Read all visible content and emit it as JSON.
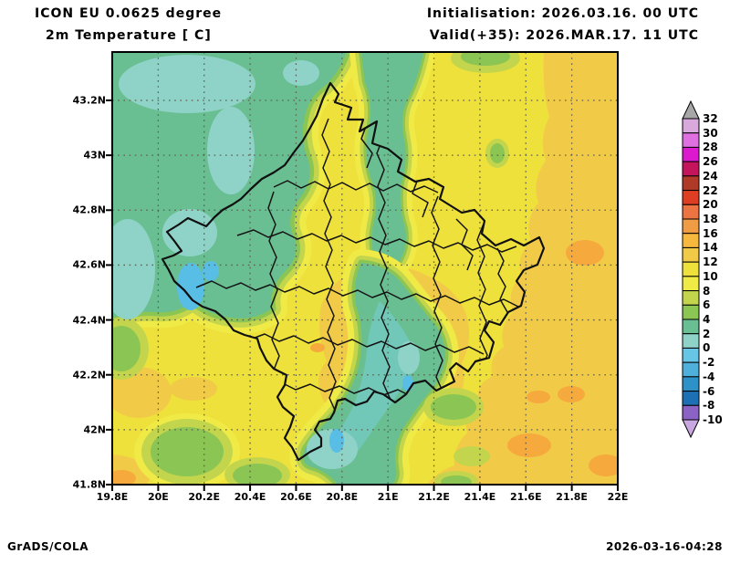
{
  "header": {
    "model": "ICON EU 0.0625 degree",
    "variable": "2m Temperature [ C]",
    "initialisation": "Initialisation: 2026.03.16. 00 UTC",
    "valid": "Valid(+35): 2026.MAR.17. 11 UTC"
  },
  "footer": {
    "credit": "GrADS/COLA",
    "timestamp": "2026-03-16-04:28"
  },
  "axes": {
    "x_ticks": [
      "19.8E",
      "20E",
      "20.2E",
      "20.4E",
      "20.6E",
      "20.8E",
      "21E",
      "21.2E",
      "21.4E",
      "21.6E",
      "21.8E",
      "22E"
    ],
    "y_ticks": [
      "43.2N",
      "43N",
      "42.8N",
      "42.6N",
      "42.4N",
      "42.2N",
      "42N",
      "41.8N"
    ]
  },
  "colorbar": {
    "labels_top_to_bottom": [
      "32",
      "30",
      "28",
      "26",
      "24",
      "22",
      "20",
      "18",
      "16",
      "14",
      "12",
      "10",
      "8",
      "6",
      "4",
      "2",
      "0",
      "-2",
      "-4",
      "-6",
      "-8",
      "-10"
    ],
    "segment_colors_top_to_bottom": [
      "#D9A8DC",
      "#DF70DF",
      "#DC19CE",
      "#C4155C",
      "#B03A28",
      "#DE3E23",
      "#EC7442",
      "#F09C44",
      "#F6B93E",
      "#F1CB47",
      "#EFE13B",
      "#F0EA47",
      "#C3D54D",
      "#8BC553",
      "#69BF92",
      "#8FD3C8",
      "#67C6E6",
      "#4FB0DC",
      "#2E91C8",
      "#1E70B4",
      "#8A63C4"
    ],
    "over_arrow_color": "#A7A7A7",
    "under_arrow_color": "#C9A7E0"
  },
  "chart_data": {
    "type": "heatmap",
    "title": "ICON EU 0.0625 degree",
    "subtitle": "2m Temperature [ C]",
    "initialisation": "2026.03.16. 00 UTC",
    "valid_label": "Valid(+35): 2026.MAR.17. 11 UTC",
    "units": "°C",
    "xlabel": "",
    "ylabel": "",
    "x_range": [
      19.8,
      22.0
    ],
    "y_range": [
      41.8,
      43.375
    ],
    "x_tick_values": [
      19.8,
      20.0,
      20.2,
      20.4,
      20.6,
      20.8,
      21.0,
      21.2,
      21.4,
      21.6,
      21.8,
      22.0
    ],
    "y_tick_values": [
      43.2,
      43.0,
      42.8,
      42.6,
      42.4,
      42.2,
      42.0,
      41.8
    ],
    "levels_c": [
      -10,
      -8,
      -6,
      -4,
      -2,
      0,
      2,
      4,
      6,
      8,
      10,
      12,
      14,
      16,
      18,
      20,
      22,
      24,
      26,
      28,
      30,
      32
    ],
    "palette_low_to_high": [
      "#8A63C4",
      "#1E70B4",
      "#2E91C8",
      "#4FB0DC",
      "#67C6E6",
      "#8FD3C8",
      "#69BF92",
      "#8BC553",
      "#C3D54D",
      "#F0EA47",
      "#EFE13B",
      "#F1CB47",
      "#F6B93E",
      "#F09C44",
      "#EC7442",
      "#DE3E23",
      "#B03A28",
      "#C4155C",
      "#DC19CE",
      "#DF70DF",
      "#D9A8DC"
    ],
    "grid": "0.2 degree dotted graticule",
    "legend_position": "right vertical colorbar",
    "overlay": "Kosovo national and municipal boundaries",
    "sample_points": [
      {
        "lon": 20.1,
        "lat": 43.3,
        "temp_c": 1
      },
      {
        "lon": 20.3,
        "lat": 43.0,
        "temp_c": 3
      },
      {
        "lon": 20.15,
        "lat": 42.75,
        "temp_c": -1
      },
      {
        "lon": 20.14,
        "lat": 42.6,
        "temp_c": 1
      },
      {
        "lon": 21.0,
        "lat": 43.3,
        "temp_c": 3
      },
      {
        "lon": 21.3,
        "lat": 43.0,
        "temp_c": 11
      },
      {
        "lon": 20.9,
        "lat": 42.7,
        "temp_c": 11
      },
      {
        "lon": 21.1,
        "lat": 42.5,
        "temp_c": 13
      },
      {
        "lon": 21.86,
        "lat": 42.66,
        "temp_c": 15
      },
      {
        "lon": 21.8,
        "lat": 42.8,
        "temp_c": 13
      },
      {
        "lon": 21.62,
        "lat": 42.21,
        "temp_c": 15
      },
      {
        "lon": 20.66,
        "lat": 41.93,
        "temp_c": 1
      },
      {
        "lon": 20.77,
        "lat": 41.96,
        "temp_c": -1
      },
      {
        "lon": 19.91,
        "lat": 42.13,
        "temp_c": 13
      },
      {
        "lon": 20.13,
        "lat": 42.16,
        "temp_c": 5
      }
    ]
  }
}
